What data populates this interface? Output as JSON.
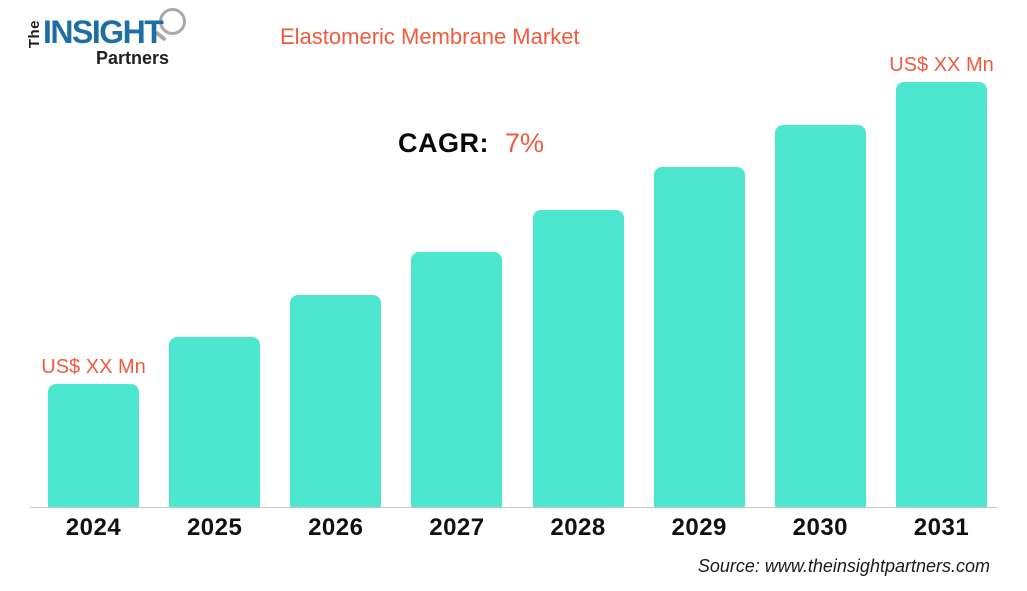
{
  "logo": {
    "the": "The",
    "insight": "INSIGHT",
    "partners": "Partners"
  },
  "header": {
    "title": "Elastomeric Membrane Market"
  },
  "cagr": {
    "label": "CAGR:",
    "value": "7%"
  },
  "chart_data": {
    "type": "bar",
    "title": "Elastomeric Membrane Market",
    "categories": [
      "2024",
      "2025",
      "2026",
      "2027",
      "2028",
      "2029",
      "2030",
      "2031"
    ],
    "values_relative_pct": [
      29,
      40,
      50,
      60,
      70,
      80,
      90,
      100
    ],
    "bar_labels": [
      "US$ XX Mn",
      "",
      "",
      "",
      "",
      "",
      "",
      "US$ XX Mn"
    ],
    "annotation": {
      "label": "CAGR:",
      "value": "7%"
    },
    "xlabel": "",
    "ylabel": "",
    "grid": false,
    "legend": false,
    "y_axis_visible": false,
    "bar_color": "#4DE6CF"
  },
  "colors": {
    "accent_orange": "#F15B3D",
    "bar_teal": "#4DE6CF",
    "logo_blue": "#1E6EA5",
    "text_dark": "#231F20",
    "axis_gray": "#C4C4C4"
  },
  "footer": {
    "source": "Source: www.theinsightpartners.com"
  }
}
